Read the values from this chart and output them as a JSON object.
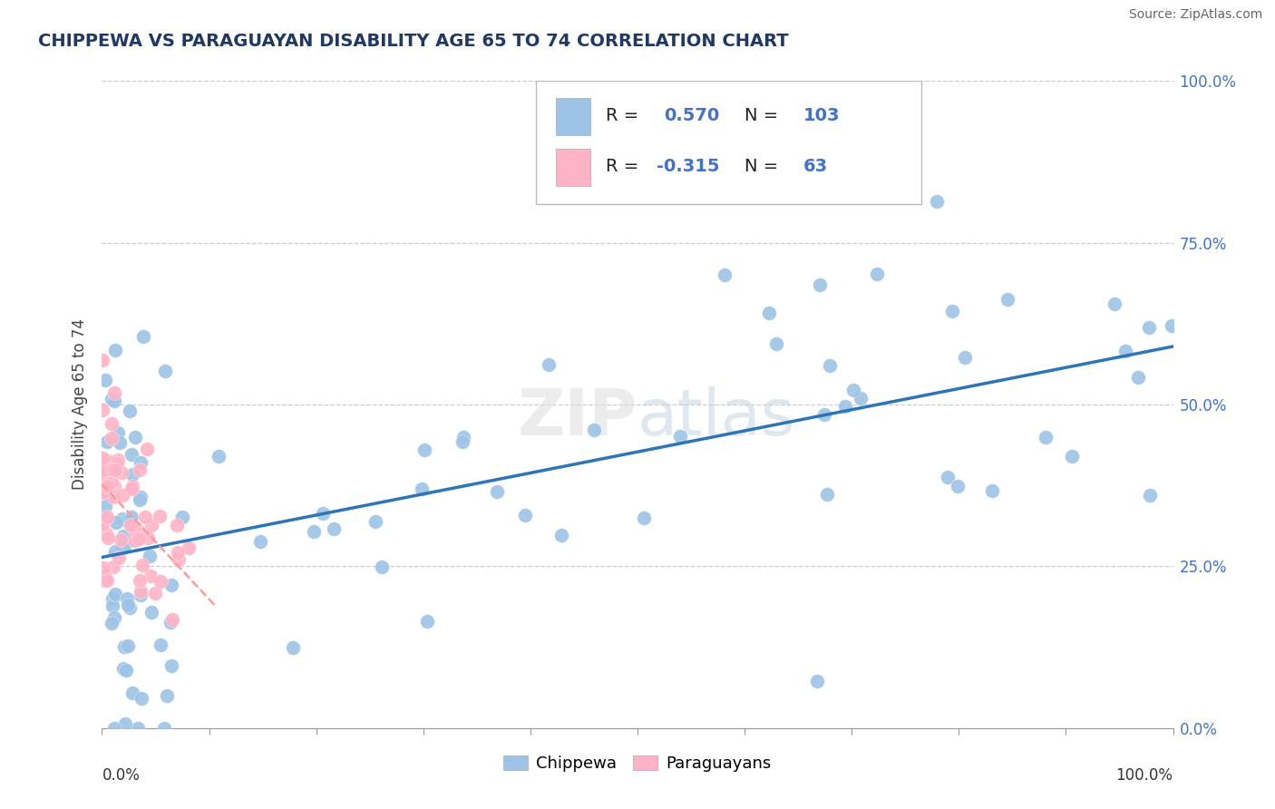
{
  "title": "CHIPPEWA VS PARAGUAYAN DISABILITY AGE 65 TO 74 CORRELATION CHART",
  "source": "Source: ZipAtlas.com",
  "ylabel": "Disability Age 65 to 74",
  "legend_chippewa": "Chippewa",
  "legend_paraguayans": "Paraguayans",
  "r_chippewa": 0.57,
  "n_chippewa": 103,
  "r_paraguayan": -0.315,
  "n_paraguayan": 63,
  "blue_color": "#9DC3E6",
  "pink_color": "#FFB3C6",
  "blue_line_color": "#2E75B6",
  "pink_line_color": "#FF9999",
  "watermark_zip": "ZIP",
  "watermark_atlas": "atlas",
  "ytick_labels": [
    "0.0%",
    "25.0%",
    "50.0%",
    "75.0%",
    "100.0%"
  ],
  "ytick_vals": [
    0.0,
    0.25,
    0.5,
    0.75,
    1.0
  ],
  "xlim": [
    0.0,
    1.0
  ],
  "ylim": [
    0.0,
    1.0
  ],
  "seed_chippewa": 17,
  "seed_paraguayan": 77
}
